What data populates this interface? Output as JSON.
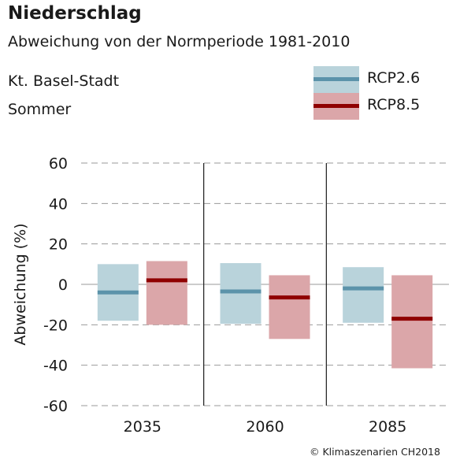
{
  "header": {
    "title": "Niederschlag",
    "subtitle": "Abweichung von der Normperiode 1981-2010",
    "region": "Kt. Basel-Stadt",
    "season": "Sommer"
  },
  "credit": "© Klimaszenarien CH2018",
  "colors": {
    "rcp26_box": "#b9d3db",
    "rcp26_line": "#5c93aa",
    "rcp85_box": "#dba6a9",
    "rcp85_line": "#8f0000"
  },
  "chart_data": {
    "type": "bar",
    "title": "Niederschlag",
    "ylabel": "Abweichung (%)",
    "xlabel": "",
    "ylim": [
      -60,
      60
    ],
    "yticks": [
      -60,
      -40,
      -20,
      0,
      20,
      40,
      60
    ],
    "ytick_labels": [
      "-60",
      "-40",
      "-20",
      "0",
      "20",
      "40",
      "60"
    ],
    "grid": true,
    "legend_position": "top-right",
    "categories": [
      "2035",
      "2060",
      "2085"
    ],
    "series": [
      {
        "name": "RCP2.6",
        "low": [
          -18,
          -19.5,
          -19
        ],
        "median": [
          -4,
          -3.5,
          -2
        ],
        "high": [
          10,
          10.5,
          8.5
        ]
      },
      {
        "name": "RCP8.5",
        "low": [
          -20,
          -27,
          -41.5
        ],
        "median": [
          2,
          -6.5,
          -17
        ],
        "high": [
          11.5,
          4.5,
          4.5
        ]
      }
    ]
  }
}
